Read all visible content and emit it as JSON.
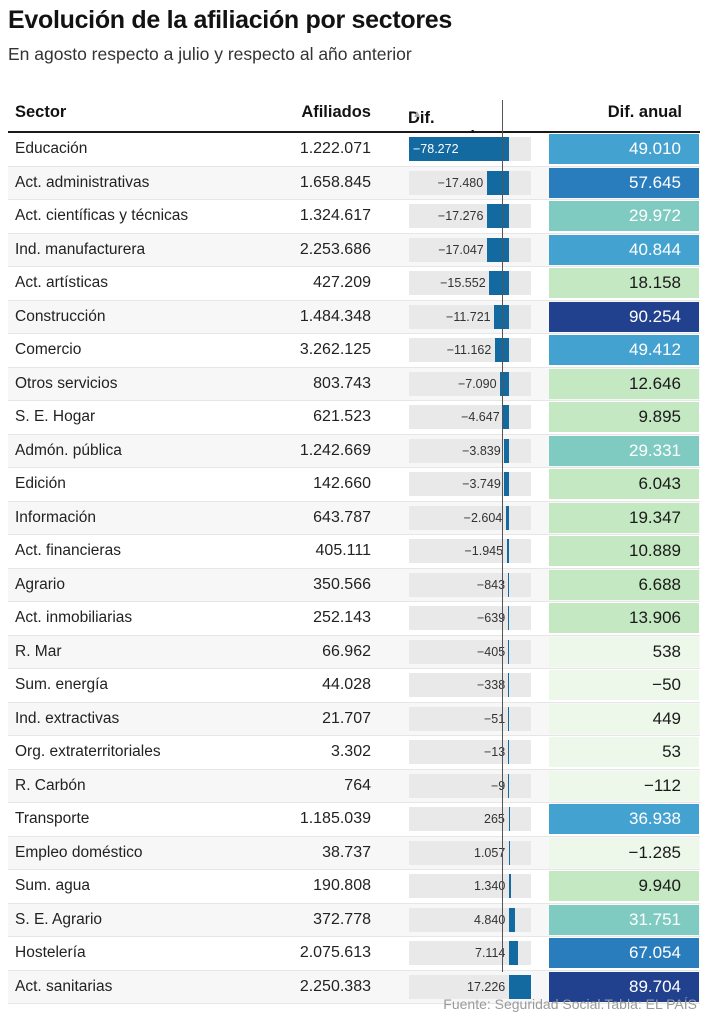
{
  "title": "Evolución de la afiliación por sectores",
  "subtitle": "En agosto respecto a julio y respecto al año anterior",
  "source": "Fuente: Seguridad Social.Tabla: EL PAÍS",
  "headers": {
    "sector": "Sector",
    "afiliados": "Afiliados",
    "mensual": "Dif. mensual",
    "sort_icon": "▲",
    "anual": "Dif. anual"
  },
  "colors": {
    "mensual_bar": "#136aa1",
    "anual_scale": [
      "#eef8ea",
      "#c4e8c2",
      "#80cbc1",
      "#44a2d0",
      "#2a7dbd",
      "#21418f"
    ]
  },
  "chart_data": {
    "type": "table",
    "columns": [
      "Sector",
      "Afiliados",
      "Dif. mensual",
      "Dif. anual"
    ],
    "mensual_range": [
      -78272,
      17226
    ],
    "rows": [
      {
        "sector": "Educación",
        "afiliados": "1.222.071",
        "mensual": -78272,
        "mensual_label": "−78.272",
        "anual": 49010,
        "anual_label": "49.010"
      },
      {
        "sector": "Act. administrativas",
        "afiliados": "1.658.845",
        "mensual": -17480,
        "mensual_label": "−17.480",
        "anual": 57645,
        "anual_label": "57.645"
      },
      {
        "sector": "Act. científicas y técnicas",
        "afiliados": "1.324.617",
        "mensual": -17276,
        "mensual_label": "−17.276",
        "anual": 29972,
        "anual_label": "29.972"
      },
      {
        "sector": "Ind. manufacturera",
        "afiliados": "2.253.686",
        "mensual": -17047,
        "mensual_label": "−17.047",
        "anual": 40844,
        "anual_label": "40.844"
      },
      {
        "sector": "Act. artísticas",
        "afiliados": "427.209",
        "mensual": -15552,
        "mensual_label": "−15.552",
        "anual": 18158,
        "anual_label": "18.158"
      },
      {
        "sector": "Construcción",
        "afiliados": "1.484.348",
        "mensual": -11721,
        "mensual_label": "−11.721",
        "anual": 90254,
        "anual_label": "90.254"
      },
      {
        "sector": "Comercio",
        "afiliados": "3.262.125",
        "mensual": -11162,
        "mensual_label": "−11.162",
        "anual": 49412,
        "anual_label": "49.412"
      },
      {
        "sector": "Otros servicios",
        "afiliados": "803.743",
        "mensual": -7090,
        "mensual_label": "−7.090",
        "anual": 12646,
        "anual_label": "12.646"
      },
      {
        "sector": "S. E. Hogar",
        "afiliados": "621.523",
        "mensual": -4647,
        "mensual_label": "−4.647",
        "anual": 9895,
        "anual_label": "9.895"
      },
      {
        "sector": "Admón. pública",
        "afiliados": "1.242.669",
        "mensual": -3839,
        "mensual_label": "−3.839",
        "anual": 29331,
        "anual_label": "29.331"
      },
      {
        "sector": "Edición",
        "afiliados": "142.660",
        "mensual": -3749,
        "mensual_label": "−3.749",
        "anual": 6043,
        "anual_label": "6.043"
      },
      {
        "sector": "Información",
        "afiliados": "643.787",
        "mensual": -2604,
        "mensual_label": "−2.604",
        "anual": 19347,
        "anual_label": "19.347"
      },
      {
        "sector": "Act. financieras",
        "afiliados": "405.111",
        "mensual": -1945,
        "mensual_label": "−1.945",
        "anual": 10889,
        "anual_label": "10.889"
      },
      {
        "sector": "Agrario",
        "afiliados": "350.566",
        "mensual": -843,
        "mensual_label": "−843",
        "anual": 6688,
        "anual_label": "6.688"
      },
      {
        "sector": "Act. inmobiliarias",
        "afiliados": "252.143",
        "mensual": -639,
        "mensual_label": "−639",
        "anual": 13906,
        "anual_label": "13.906"
      },
      {
        "sector": "R. Mar",
        "afiliados": "66.962",
        "mensual": -405,
        "mensual_label": "−405",
        "anual": 538,
        "anual_label": "538"
      },
      {
        "sector": "Sum. energía",
        "afiliados": "44.028",
        "mensual": -338,
        "mensual_label": "−338",
        "anual": -50,
        "anual_label": "−50"
      },
      {
        "sector": "Ind. extractivas",
        "afiliados": "21.707",
        "mensual": -51,
        "mensual_label": "−51",
        "anual": 449,
        "anual_label": "449"
      },
      {
        "sector": "Org. extraterritoriales",
        "afiliados": "3.302",
        "mensual": -13,
        "mensual_label": "−13",
        "anual": 53,
        "anual_label": "53"
      },
      {
        "sector": "R. Carbón",
        "afiliados": "764",
        "mensual": -9,
        "mensual_label": "−9",
        "anual": -112,
        "anual_label": "−112"
      },
      {
        "sector": "Transporte",
        "afiliados": "1.185.039",
        "mensual": 265,
        "mensual_label": "265",
        "anual": 36938,
        "anual_label": "36.938"
      },
      {
        "sector": "Empleo doméstico",
        "afiliados": "38.737",
        "mensual": 1057,
        "mensual_label": "1.057",
        "anual": -1285,
        "anual_label": "−1.285"
      },
      {
        "sector": "Sum. agua",
        "afiliados": "190.808",
        "mensual": 1340,
        "mensual_label": "1.340",
        "anual": 9940,
        "anual_label": "9.940"
      },
      {
        "sector": "S. E. Agrario",
        "afiliados": "372.778",
        "mensual": 4840,
        "mensual_label": "4.840",
        "anual": 31751,
        "anual_label": "31.751"
      },
      {
        "sector": "Hostelería",
        "afiliados": "2.075.613",
        "mensual": 7114,
        "mensual_label": "7.114",
        "anual": 67054,
        "anual_label": "67.054"
      },
      {
        "sector": "Act. sanitarias",
        "afiliados": "2.250.383",
        "mensual": 17226,
        "mensual_label": "17.226",
        "anual": 89704,
        "anual_label": "89.704"
      }
    ]
  }
}
